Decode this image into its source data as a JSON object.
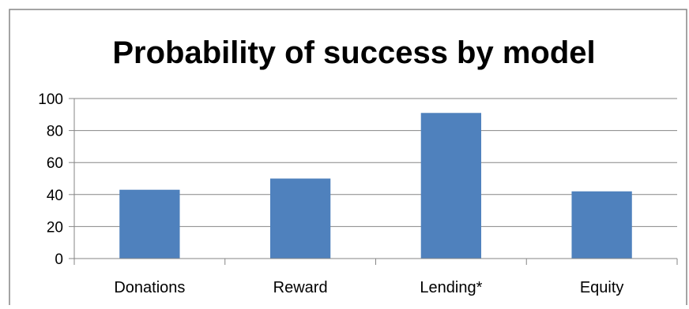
{
  "chart_data": {
    "type": "bar",
    "title": "Probability of success by model",
    "xlabel": "",
    "ylabel": "",
    "categories": [
      "Donations",
      "Reward",
      "Lending*",
      "Equity"
    ],
    "values": [
      43,
      50,
      91,
      42
    ],
    "ylim": [
      0,
      100
    ],
    "yticks": [
      0,
      20,
      40,
      60,
      80,
      100
    ],
    "grid": true,
    "legend": "none",
    "bar_color": "#4F81BD",
    "grid_color": "#868686"
  }
}
